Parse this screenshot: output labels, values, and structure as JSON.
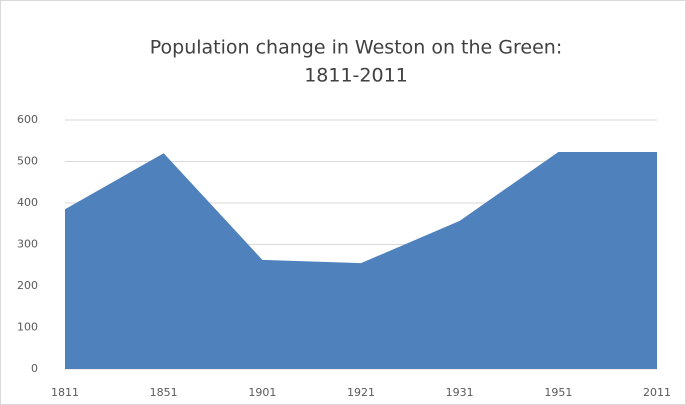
{
  "chart_data": {
    "type": "area",
    "title": [
      "Population change in Weston on the Green:",
      "1811-2011"
    ],
    "categories": [
      "1811",
      "1851",
      "1901",
      "1921",
      "1931",
      "1951",
      "2011"
    ],
    "values": [
      385,
      520,
      263,
      255,
      357,
      523,
      523
    ],
    "color": "#4f81bd",
    "ylim": [
      0,
      600
    ],
    "yticks": [
      0,
      100,
      200,
      300,
      400,
      500,
      600
    ],
    "grid": true
  }
}
